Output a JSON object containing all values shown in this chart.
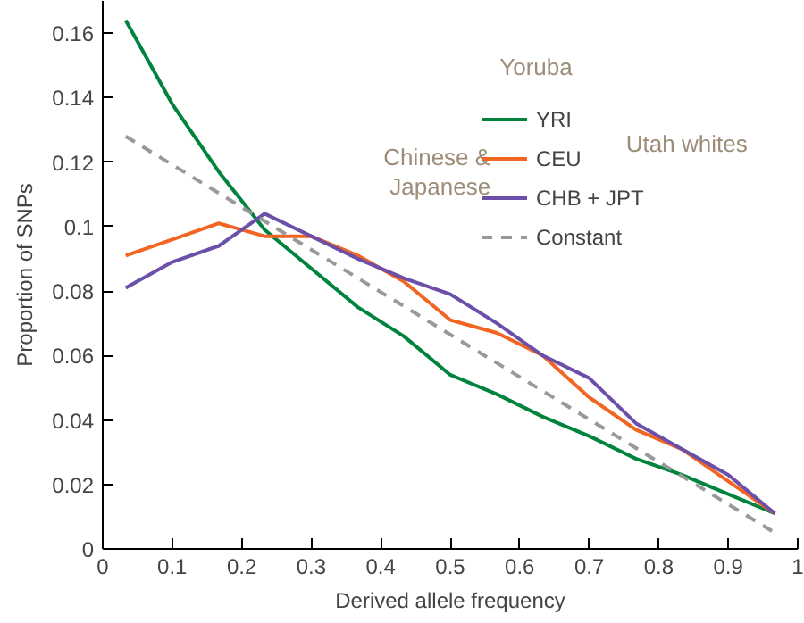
{
  "chart_data": {
    "type": "line",
    "xlabel": "Derived allele frequency",
    "ylabel": "Proportion of SNPs",
    "x": [
      0.033,
      0.1,
      0.167,
      0.233,
      0.3,
      0.367,
      0.433,
      0.5,
      0.567,
      0.633,
      0.7,
      0.767,
      0.833,
      0.9,
      0.967
    ],
    "series": [
      {
        "name": "YRI",
        "color": "#00843d",
        "values": [
          0.164,
          0.138,
          0.117,
          0.099,
          0.087,
          0.075,
          0.066,
          0.054,
          0.048,
          0.041,
          0.035,
          0.028,
          0.023,
          0.017,
          0.011
        ]
      },
      {
        "name": "CEU",
        "color": "#f26522",
        "values": [
          0.091,
          0.096,
          0.101,
          0.097,
          0.097,
          0.091,
          0.083,
          0.071,
          0.067,
          0.06,
          0.047,
          0.037,
          0.031,
          0.021,
          0.011
        ]
      },
      {
        "name": "CHB + JPT",
        "color": "#6b4fa8",
        "values": [
          0.081,
          0.089,
          0.094,
          0.104,
          0.097,
          0.09,
          0.084,
          0.079,
          0.07,
          0.06,
          0.053,
          0.039,
          0.031,
          0.023,
          0.011
        ]
      },
      {
        "name": "Constant",
        "color": "#999999",
        "line_style": "dashed",
        "x": [
          0.033,
          0.967
        ],
        "values": [
          0.128,
          0.005
        ]
      }
    ],
    "annotations": [
      "Yoruba",
      "Utah whites",
      "Chinese & Japanese"
    ],
    "xlim": [
      0,
      1
    ],
    "ylim": [
      0,
      0.17
    ],
    "xticks": [
      0,
      0.1,
      0.2,
      0.3,
      0.4,
      0.5,
      0.6,
      0.7,
      0.8,
      0.9,
      1
    ],
    "yticks": [
      0,
      0.02,
      0.04,
      0.06,
      0.08,
      0.1,
      0.12,
      0.14,
      0.16
    ],
    "legend": "top right",
    "grid": false
  }
}
